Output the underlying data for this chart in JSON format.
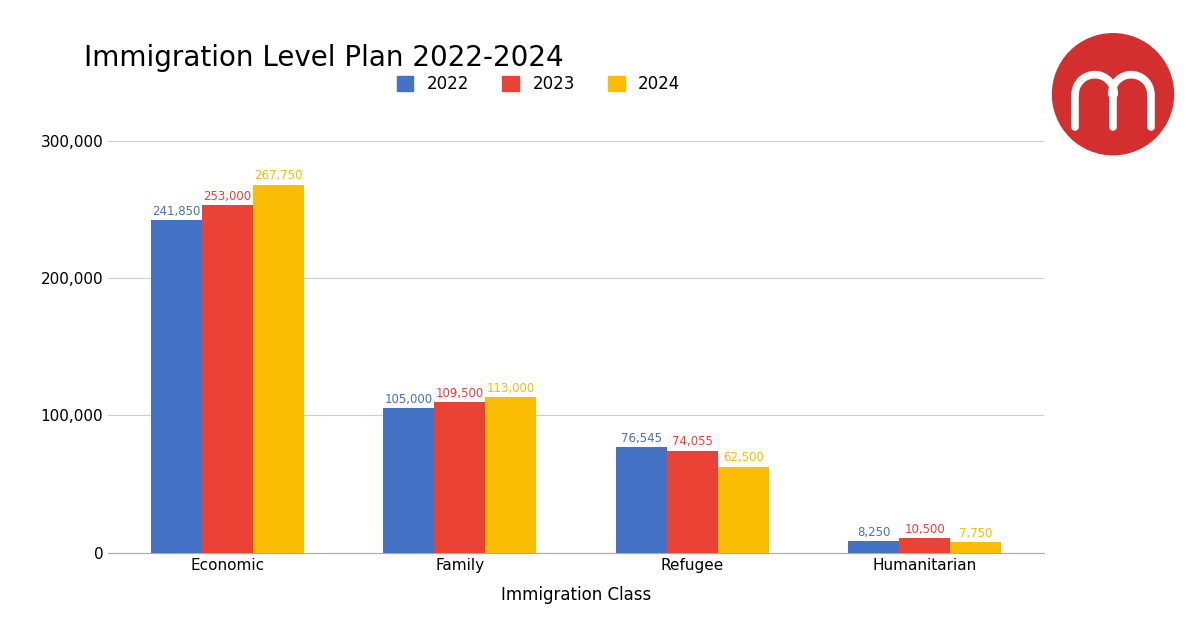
{
  "title": "Immigration Level Plan 2022-2024",
  "categories": [
    "Economic",
    "Family",
    "Refugee",
    "Humanitarian"
  ],
  "years": [
    "2022",
    "2023",
    "2024"
  ],
  "values": {
    "2022": [
      241850,
      105000,
      76545,
      8250
    ],
    "2023": [
      253000,
      109500,
      74055,
      10500
    ],
    "2024": [
      267750,
      113000,
      62500,
      7750
    ]
  },
  "bar_colors": [
    "#4472C4",
    "#EA4335",
    "#FBBC04"
  ],
  "xlabel": "Immigration Class",
  "ylabel": "",
  "ylim": [
    0,
    320000
  ],
  "yticks": [
    0,
    100000,
    200000,
    300000
  ],
  "background_color": "#ffffff",
  "title_fontsize": 20,
  "axis_label_fontsize": 12,
  "tick_fontsize": 11,
  "legend_fontsize": 12,
  "bar_label_fontsize": 8.5,
  "grid_color": "#cccccc",
  "logo_color": "#D32F2F",
  "bar_width": 0.22
}
